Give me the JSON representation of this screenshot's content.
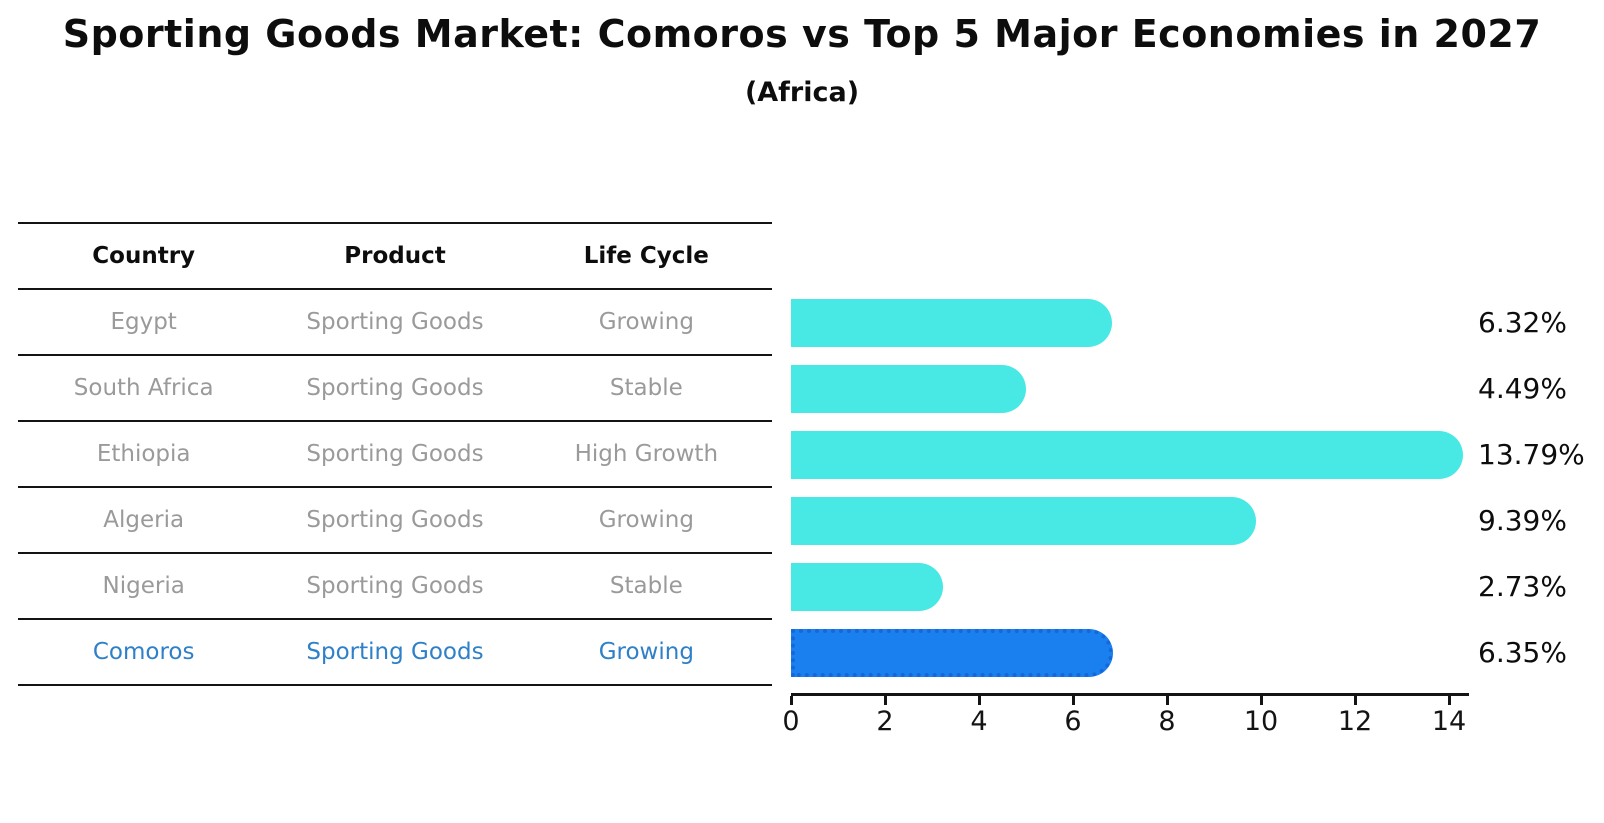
{
  "title": "Sporting Goods Market: Comoros vs Top 5 Major Economies in 2027",
  "subtitle": "(Africa)",
  "table": {
    "headers": [
      "Country",
      "Product",
      "Life Cycle"
    ],
    "rows": [
      {
        "country": "Egypt",
        "product": "Sporting Goods",
        "life_cycle": "Growing",
        "highlight": false
      },
      {
        "country": "South Africa",
        "product": "Sporting Goods",
        "life_cycle": "Stable",
        "highlight": false
      },
      {
        "country": "Ethiopia",
        "product": "Sporting Goods",
        "life_cycle": "High Growth",
        "highlight": false
      },
      {
        "country": "Algeria",
        "product": "Sporting Goods",
        "life_cycle": "Growing",
        "highlight": false
      },
      {
        "country": "Nigeria",
        "product": "Sporting Goods",
        "life_cycle": "Stable",
        "highlight": false
      },
      {
        "country": "Comoros",
        "product": "Sporting Goods",
        "life_cycle": "Growing",
        "highlight": true
      }
    ]
  },
  "chart_data": {
    "type": "bar",
    "orientation": "horizontal",
    "title": "Sporting Goods Market: Comoros vs Top 5 Major Economies in 2027 (Africa)",
    "categories": [
      "Egypt",
      "South Africa",
      "Ethiopia",
      "Algeria",
      "Nigeria",
      "Comoros"
    ],
    "values": [
      6.32,
      4.49,
      13.79,
      9.39,
      2.73,
      6.35
    ],
    "value_labels": [
      "6.32%",
      "4.49%",
      "13.79%",
      "9.39%",
      "2.73%",
      "6.35%"
    ],
    "highlight_index": 5,
    "xlabel": "",
    "ylabel": "",
    "xlim": [
      0,
      14.5
    ],
    "x_ticks": [
      0,
      2,
      4,
      6,
      8,
      10,
      12,
      14
    ],
    "grid": false,
    "legend": "none",
    "colors": {
      "default_bar": "#48e8e4",
      "highlight_bar": "#1a80f0",
      "highlight_bar_border": "#1667d8",
      "highlight_text": "#2e80c8",
      "table_text": "#9a9a9a",
      "line": "#141414",
      "label_text": "#0d0d0d"
    }
  }
}
